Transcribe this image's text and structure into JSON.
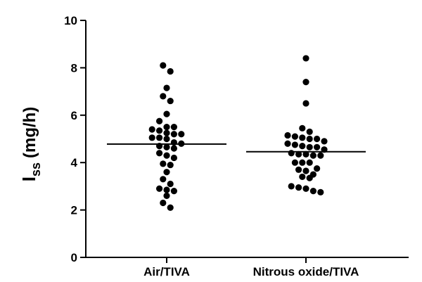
{
  "chart_data": {
    "type": "scatter",
    "plot_style": "dot-plot",
    "categories": [
      "Air/TIVA",
      "Nitrous oxide/TIVA"
    ],
    "ylabel_main": "I",
    "ylabel_sub": "ss",
    "ylabel_unit": "(mg/h)",
    "ylim": [
      0,
      10
    ],
    "yticks": [
      "0",
      "2",
      "4",
      "6",
      "8",
      "10"
    ],
    "grid": false,
    "series": [
      {
        "values": [
          8.1,
          7.85,
          7.15,
          6.8,
          6.6,
          6.05,
          5.75,
          5.5,
          5.5,
          5.4,
          5.35,
          5.2,
          5.25,
          5.2,
          5.0,
          5.05,
          5.05,
          4.85,
          4.8,
          4.7,
          4.65,
          4.6,
          4.4,
          4.3,
          4.2,
          3.9,
          3.95,
          3.6,
          3.3,
          3.1,
          2.9,
          2.8,
          2.85,
          2.6,
          2.3,
          2.1
        ],
        "mean": 4.78,
        "mean_line": true
      },
      {
        "values": [
          8.4,
          7.4,
          6.5,
          5.45,
          5.3,
          5.15,
          5.1,
          5.05,
          5.0,
          5.0,
          4.9,
          4.8,
          4.75,
          4.7,
          4.65,
          4.65,
          4.55,
          4.4,
          4.35,
          4.35,
          4.3,
          4.3,
          4.0,
          4.0,
          4.0,
          3.75,
          3.7,
          3.65,
          3.5,
          3.4,
          3.35,
          3.0,
          2.95,
          2.9,
          2.8,
          2.75
        ],
        "mean": 4.46,
        "mean_line": true
      }
    ],
    "colors": {
      "points": "#000000",
      "axis": "#000000",
      "mean_line": "#000000"
    }
  }
}
